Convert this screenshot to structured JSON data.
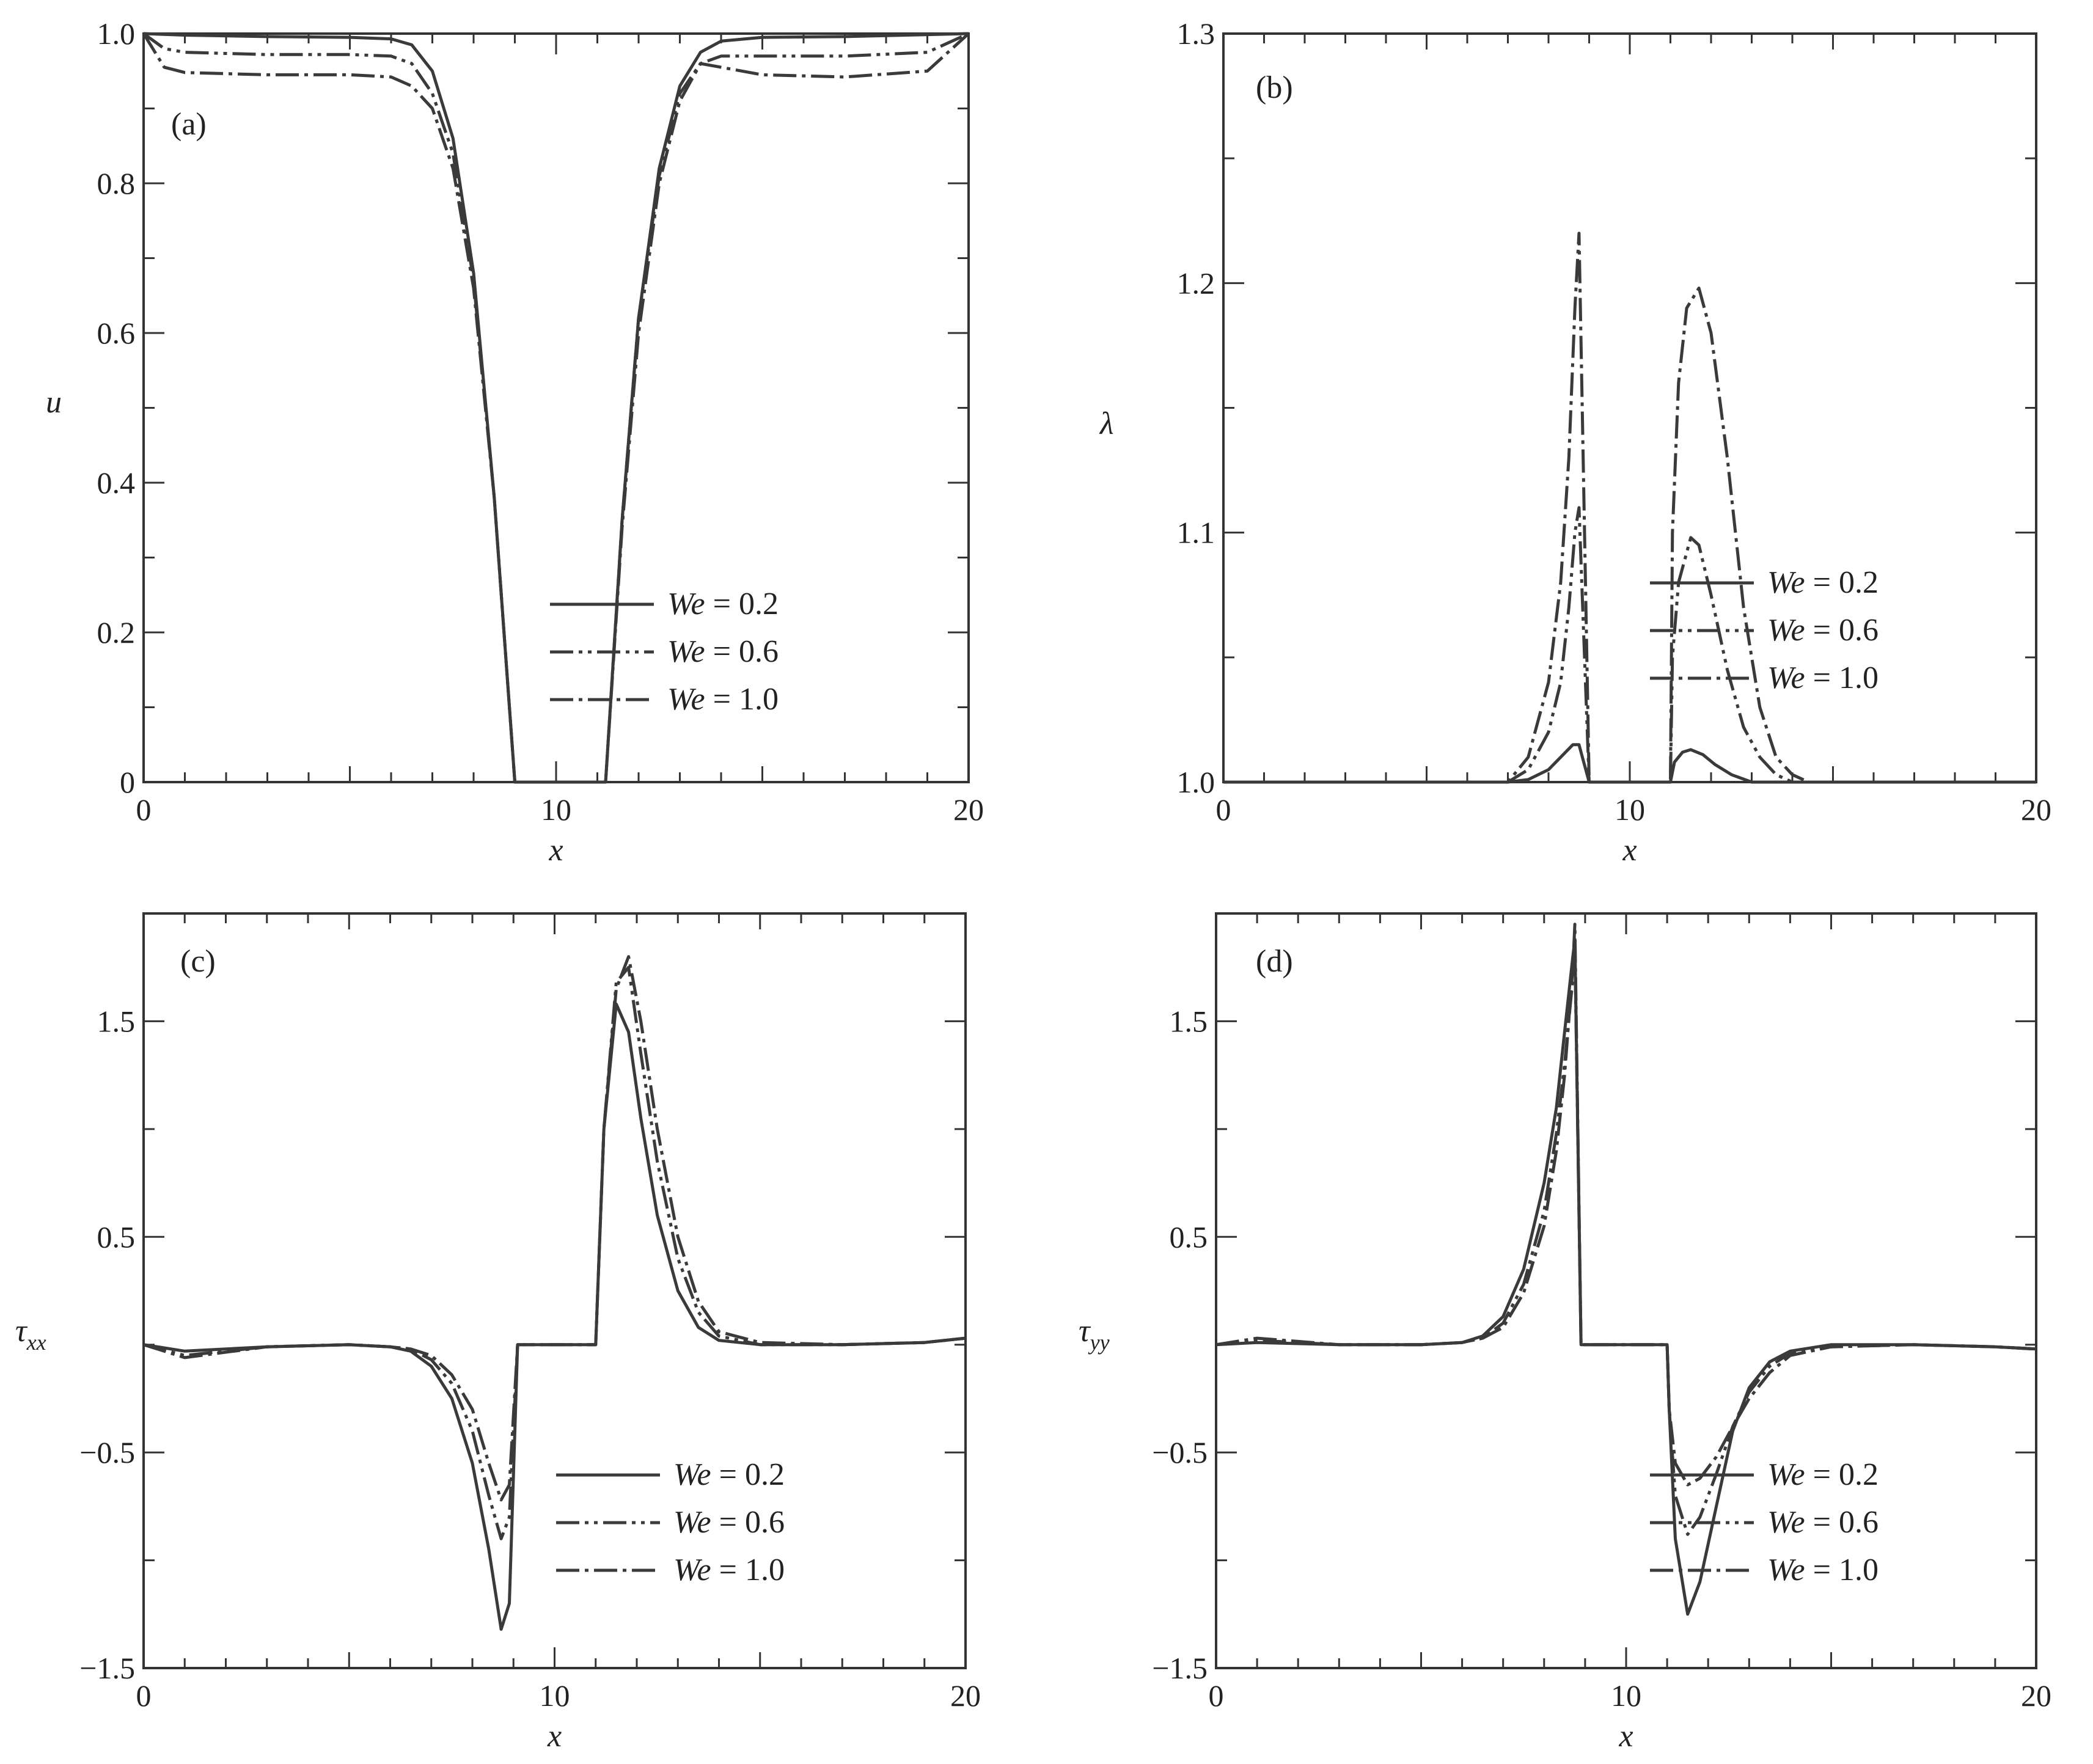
{
  "colors": {
    "axis": "#333333",
    "line": "#3a3a3a",
    "background": "#ffffff"
  },
  "legend_labels": [
    "We = 0.2",
    "We = 0.6",
    "We = 1.0"
  ],
  "chart_data": [
    {
      "type": "line",
      "panel_label": "(a)",
      "xlabel": "x",
      "ylabel": "u",
      "xlim": [
        0,
        20
      ],
      "ylim": [
        0,
        1.0
      ],
      "xticks": [
        0,
        10,
        20
      ],
      "yticks": [
        0,
        0.2,
        0.4,
        0.6,
        0.8,
        1.0
      ],
      "yticklabels": [
        "0",
        "0.2",
        "0.4",
        "0.6",
        "0.8",
        "1.0"
      ],
      "legend_position": "lower-right",
      "series": [
        {
          "name": "We = 0.2",
          "x": [
            0,
            1,
            3,
            5,
            6,
            6.5,
            7,
            7.5,
            8,
            8.5,
            9,
            11.2,
            11.6,
            12,
            12.5,
            13,
            13.5,
            14,
            15,
            17,
            20
          ],
          "y": [
            1.0,
            0.998,
            0.996,
            0.995,
            0.993,
            0.985,
            0.95,
            0.86,
            0.68,
            0.38,
            0,
            0,
            0.35,
            0.62,
            0.82,
            0.93,
            0.975,
            0.99,
            0.995,
            0.996,
            1.0
          ]
        },
        {
          "name": "We = 0.6",
          "x": [
            0,
            0.5,
            1,
            3,
            5,
            6,
            6.5,
            7,
            7.5,
            8,
            8.5,
            9,
            11.2,
            11.6,
            12,
            12.5,
            13,
            13.5,
            14,
            15,
            17,
            19,
            20
          ],
          "y": [
            1.0,
            0.98,
            0.975,
            0.972,
            0.972,
            0.97,
            0.96,
            0.92,
            0.84,
            0.67,
            0.38,
            0,
            0,
            0.35,
            0.62,
            0.81,
            0.92,
            0.96,
            0.97,
            0.97,
            0.97,
            0.975,
            1.0
          ]
        },
        {
          "name": "We = 1.0",
          "x": [
            0,
            0.5,
            1,
            3,
            5,
            6,
            6.5,
            7,
            7.5,
            8,
            8.5,
            9,
            11.2,
            11.6,
            12,
            12.5,
            13,
            13.5,
            14,
            15,
            17,
            19,
            20
          ],
          "y": [
            1.0,
            0.955,
            0.948,
            0.945,
            0.945,
            0.942,
            0.93,
            0.9,
            0.82,
            0.66,
            0.38,
            0,
            0,
            0.34,
            0.6,
            0.8,
            0.91,
            0.96,
            0.955,
            0.945,
            0.942,
            0.95,
            1.0
          ]
        }
      ]
    },
    {
      "type": "line",
      "panel_label": "(b)",
      "xlabel": "x",
      "ylabel": "λ",
      "xlim": [
        0,
        20
      ],
      "ylim": [
        1.0,
        1.3
      ],
      "xticks": [
        0,
        10,
        20
      ],
      "yticks": [
        1.0,
        1.1,
        1.2,
        1.3
      ],
      "yticklabels": [
        "1.0",
        "1.1",
        "1.2",
        "1.3"
      ],
      "legend_position": "center-right",
      "series": [
        {
          "name": "We = 0.2",
          "x": [
            0,
            7,
            7.5,
            8,
            8.3,
            8.6,
            8.75,
            9.0,
            11,
            11.1,
            11.3,
            11.5,
            11.8,
            12.1,
            12.5,
            13,
            20
          ],
          "y": [
            1.0,
            1.0,
            1.001,
            1.005,
            1.01,
            1.015,
            1.015,
            1.0,
            1.0,
            1.008,
            1.012,
            1.013,
            1.011,
            1.007,
            1.003,
            1.0,
            1.0
          ]
        },
        {
          "name": "We = 0.6",
          "x": [
            0,
            7,
            7.5,
            8,
            8.3,
            8.5,
            8.65,
            8.75,
            9.0,
            11,
            11.05,
            11.2,
            11.5,
            11.7,
            12,
            12.4,
            12.8,
            13.2,
            13.6,
            14,
            20
          ],
          "y": [
            1.0,
            1.0,
            1.005,
            1.02,
            1.04,
            1.07,
            1.1,
            1.11,
            1.0,
            1.0,
            1.05,
            1.08,
            1.098,
            1.095,
            1.075,
            1.045,
            1.022,
            1.01,
            1.003,
            1.0,
            1.0
          ]
        },
        {
          "name": "We = 1.0",
          "x": [
            0,
            7,
            7.5,
            8,
            8.3,
            8.5,
            8.65,
            8.75,
            9.0,
            11,
            11.05,
            11.2,
            11.4,
            11.7,
            12,
            12.4,
            12.8,
            13.2,
            13.6,
            14,
            14.4,
            20
          ],
          "y": [
            1.0,
            1.0,
            1.01,
            1.04,
            1.08,
            1.13,
            1.19,
            1.22,
            1.0,
            1.0,
            1.1,
            1.16,
            1.19,
            1.198,
            1.18,
            1.13,
            1.07,
            1.03,
            1.01,
            1.003,
            1.0,
            1.0
          ]
        }
      ]
    },
    {
      "type": "line",
      "panel_label": "(c)",
      "xlabel": "x",
      "ylabel": "τxx",
      "xlim": [
        0,
        20
      ],
      "ylim": [
        -1.5,
        2.0
      ],
      "xticks": [
        0,
        10,
        20
      ],
      "yticks": [
        -1.5,
        -0.5,
        0.5,
        1.5
      ],
      "yticklabels": [
        "−1.5",
        "−0.5",
        "0.5",
        "1.5"
      ],
      "legend_position": "lower-right",
      "series": [
        {
          "name": "We = 0.2",
          "x": [
            0,
            1,
            3,
            5,
            6,
            6.5,
            7,
            7.5,
            8,
            8.4,
            8.7,
            8.9,
            9.1,
            11.0,
            11.2,
            11.5,
            11.8,
            12.1,
            12.5,
            13,
            13.5,
            14,
            15,
            17,
            19,
            20
          ],
          "y": [
            0,
            -0.03,
            -0.01,
            0,
            -0.01,
            -0.03,
            -0.1,
            -0.25,
            -0.55,
            -0.95,
            -1.32,
            -1.2,
            0,
            0,
            1.0,
            1.58,
            1.45,
            1.05,
            0.6,
            0.25,
            0.08,
            0.02,
            0,
            0,
            0.01,
            0.03
          ]
        },
        {
          "name": "We = 0.6",
          "x": [
            0,
            1,
            3,
            5,
            6,
            6.5,
            7,
            7.5,
            8,
            8.4,
            8.7,
            8.9,
            9.1,
            11.0,
            11.2,
            11.5,
            11.8,
            12.1,
            12.5,
            13,
            13.5,
            14,
            15,
            17,
            19,
            20
          ],
          "y": [
            0,
            -0.05,
            -0.01,
            0,
            -0.01,
            -0.02,
            -0.07,
            -0.18,
            -0.4,
            -0.7,
            -0.9,
            -0.8,
            0,
            0,
            1.0,
            1.68,
            1.75,
            1.35,
            0.85,
            0.4,
            0.15,
            0.04,
            0,
            0,
            0.01,
            0.03
          ]
        },
        {
          "name": "We = 1.0",
          "x": [
            0,
            1,
            3,
            5,
            6,
            6.5,
            7,
            7.5,
            8,
            8.4,
            8.7,
            8.9,
            9.1,
            11.0,
            11.2,
            11.5,
            11.8,
            12.1,
            12.5,
            13,
            13.5,
            14,
            15,
            17,
            19,
            20
          ],
          "y": [
            0,
            -0.06,
            -0.01,
            0,
            -0.01,
            -0.02,
            -0.05,
            -0.14,
            -0.3,
            -0.55,
            -0.72,
            -0.65,
            0,
            0,
            1.0,
            1.65,
            1.8,
            1.5,
            1.0,
            0.5,
            0.2,
            0.06,
            0.01,
            0,
            0.01,
            0.03
          ]
        }
      ]
    },
    {
      "type": "line",
      "panel_label": "(d)",
      "xlabel": "x",
      "ylabel": "τyy",
      "xlim": [
        0,
        20
      ],
      "ylim": [
        -1.5,
        2.0
      ],
      "xticks": [
        0,
        10,
        20
      ],
      "yticks": [
        -1.5,
        -0.5,
        0.5,
        1.5
      ],
      "yticklabels": [
        "−1.5",
        "−0.5",
        "0.5",
        "1.5"
      ],
      "legend_position": "lower-right",
      "series": [
        {
          "name": "We = 0.2",
          "x": [
            0,
            1,
            3,
            5,
            6,
            6.5,
            7,
            7.5,
            8,
            8.3,
            8.5,
            8.7,
            8.75,
            8.9,
            11,
            11.05,
            11.2,
            11.5,
            11.8,
            12.2,
            12.6,
            13,
            13.5,
            14,
            15,
            17,
            19,
            20
          ],
          "y": [
            0,
            0.01,
            0,
            0,
            0.01,
            0.04,
            0.13,
            0.35,
            0.75,
            1.1,
            1.45,
            1.8,
            1.88,
            0,
            0,
            -0.3,
            -0.9,
            -1.25,
            -1.1,
            -0.75,
            -0.4,
            -0.2,
            -0.08,
            -0.03,
            0,
            0,
            -0.01,
            -0.02
          ]
        },
        {
          "name": "We = 0.6",
          "x": [
            0,
            1,
            3,
            5,
            6,
            6.5,
            7,
            7.5,
            8,
            8.3,
            8.5,
            8.7,
            8.75,
            8.9,
            11,
            11.05,
            11.2,
            11.5,
            11.8,
            12.2,
            12.6,
            13,
            13.5,
            14,
            15,
            17,
            19,
            20
          ],
          "y": [
            0,
            0.02,
            0,
            0,
            0.01,
            0.03,
            0.1,
            0.28,
            0.62,
            0.98,
            1.3,
            1.7,
            1.85,
            0,
            0,
            -0.3,
            -0.7,
            -0.88,
            -0.8,
            -0.6,
            -0.38,
            -0.22,
            -0.1,
            -0.04,
            -0.01,
            0,
            -0.01,
            -0.02
          ]
        },
        {
          "name": "We = 1.0",
          "x": [
            0,
            1,
            3,
            5,
            6,
            6.5,
            7,
            7.5,
            8,
            8.3,
            8.5,
            8.7,
            8.75,
            8.9,
            11,
            11.05,
            11.2,
            11.5,
            11.8,
            12.2,
            12.6,
            13,
            13.5,
            14,
            15,
            17,
            19,
            20
          ],
          "y": [
            0,
            0.03,
            0,
            0,
            0.01,
            0.03,
            0.08,
            0.24,
            0.55,
            0.9,
            1.25,
            1.75,
            1.95,
            0,
            0,
            -0.3,
            -0.55,
            -0.65,
            -0.62,
            -0.52,
            -0.38,
            -0.25,
            -0.13,
            -0.05,
            -0.01,
            0,
            -0.01,
            -0.02
          ]
        }
      ]
    }
  ]
}
